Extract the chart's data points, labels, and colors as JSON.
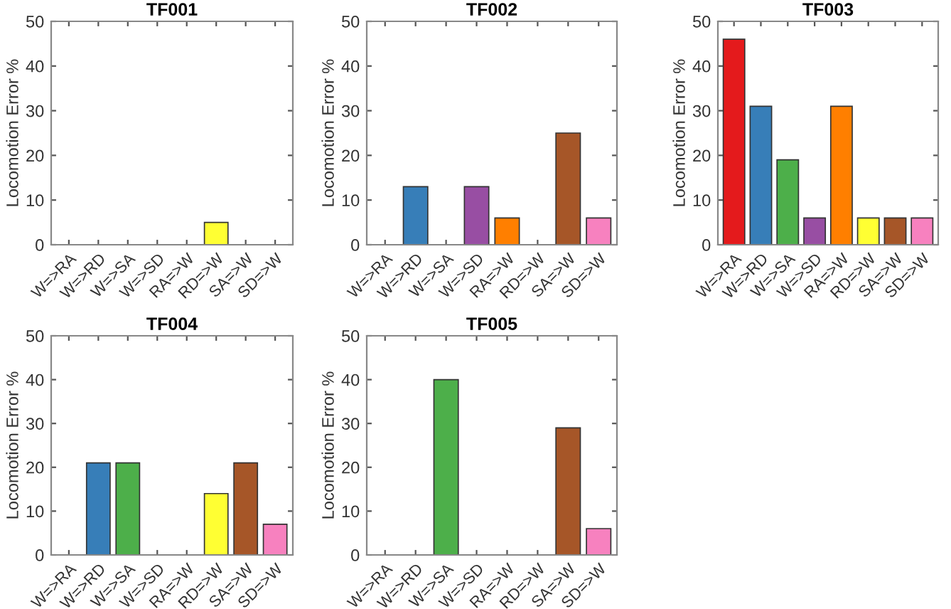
{
  "chart_data": [
    {
      "type": "bar",
      "title": "TF001",
      "ylabel": "Locomotion Error %",
      "categories": [
        "W=>RA",
        "W=>RD",
        "W=>SA",
        "W=>SD",
        "RA=>W",
        "RD=>W",
        "SA=>W",
        "SD=>W"
      ],
      "values": [
        0,
        0,
        0,
        0,
        0,
        5,
        0,
        0
      ],
      "colors": [
        "#e41a1c",
        "#377eb8",
        "#4daf4a",
        "#984ea3",
        "#ff7f00",
        "#ffff33",
        "#a65628",
        "#f781bf"
      ],
      "ylim": [
        0,
        50
      ],
      "yticks": [
        0,
        10,
        20,
        30,
        40,
        50
      ]
    },
    {
      "type": "bar",
      "title": "TF002",
      "ylabel": "Locomotion Error %",
      "categories": [
        "W=>RA",
        "W=>RD",
        "W=>SA",
        "W=>SD",
        "RA=>W",
        "RD=>W",
        "SA=>W",
        "SD=>W"
      ],
      "values": [
        0,
        13,
        0,
        13,
        6,
        0,
        25,
        6
      ],
      "colors": [
        "#e41a1c",
        "#377eb8",
        "#4daf4a",
        "#984ea3",
        "#ff7f00",
        "#ffff33",
        "#a65628",
        "#f781bf"
      ],
      "ylim": [
        0,
        50
      ],
      "yticks": [
        0,
        10,
        20,
        30,
        40,
        50
      ]
    },
    {
      "type": "bar",
      "title": "TF003",
      "ylabel": "Locomotion Error %",
      "categories": [
        "W=>RA",
        "W=>RD",
        "W=>SA",
        "W=>SD",
        "RA=>W",
        "RD=>W",
        "SA=>W",
        "SD=>W"
      ],
      "values": [
        46,
        31,
        19,
        6,
        31,
        6,
        6,
        6
      ],
      "colors": [
        "#e41a1c",
        "#377eb8",
        "#4daf4a",
        "#984ea3",
        "#ff7f00",
        "#ffff33",
        "#a65628",
        "#f781bf"
      ],
      "ylim": [
        0,
        50
      ],
      "yticks": [
        0,
        10,
        20,
        30,
        40,
        50
      ]
    },
    {
      "type": "bar",
      "title": "TF004",
      "ylabel": "Locomotion Error %",
      "categories": [
        "W=>RA",
        "W=>RD",
        "W=>SA",
        "W=>SD",
        "RA=>W",
        "RD=>W",
        "SA=>W",
        "SD=>W"
      ],
      "values": [
        0,
        21,
        21,
        0,
        0,
        14,
        21,
        7
      ],
      "colors": [
        "#e41a1c",
        "#377eb8",
        "#4daf4a",
        "#984ea3",
        "#ff7f00",
        "#ffff33",
        "#a65628",
        "#f781bf"
      ],
      "ylim": [
        0,
        50
      ],
      "yticks": [
        0,
        10,
        20,
        30,
        40,
        50
      ]
    },
    {
      "type": "bar",
      "title": "TF005",
      "ylabel": "Locomotion Error %",
      "categories": [
        "W=>RA",
        "W=>RD",
        "W=>SA",
        "W=>SD",
        "RA=>W",
        "RD=>W",
        "SA=>W",
        "SD=>W"
      ],
      "values": [
        0,
        0,
        40,
        0,
        0,
        0,
        29,
        6
      ],
      "colors": [
        "#e41a1c",
        "#377eb8",
        "#4daf4a",
        "#984ea3",
        "#ff7f00",
        "#ffff33",
        "#a65628",
        "#f781bf"
      ],
      "ylim": [
        0,
        50
      ],
      "yticks": [
        0,
        10,
        20,
        30,
        40,
        50
      ]
    }
  ]
}
